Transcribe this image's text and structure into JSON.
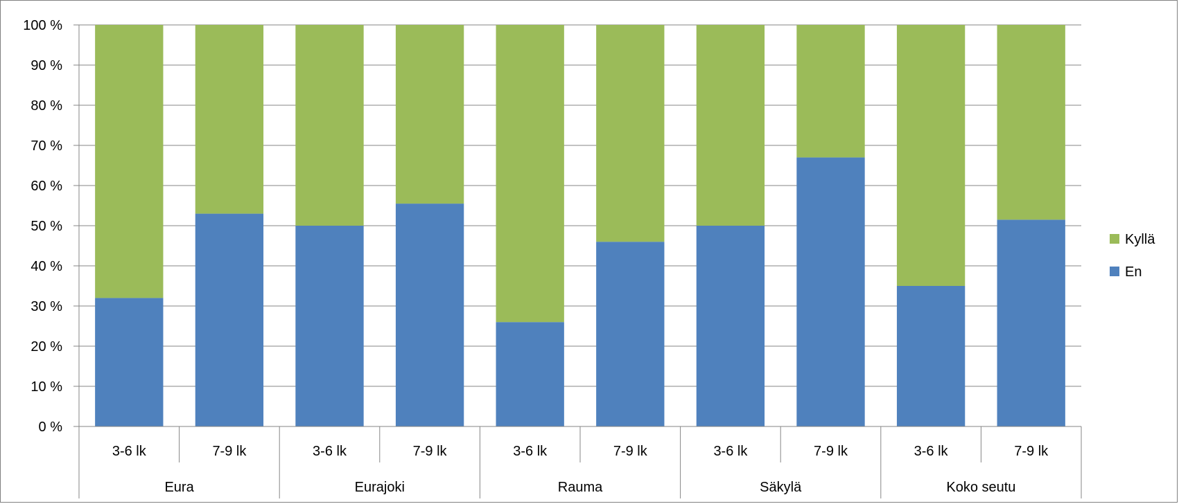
{
  "chart_data": {
    "type": "bar",
    "stacked": true,
    "ylim": [
      0,
      100
    ],
    "y_ticks": [
      "0 %",
      "10 %",
      "20 %",
      "30 %",
      "40 %",
      "50 %",
      "60 %",
      "70 %",
      "80 %",
      "90 %",
      "100 %"
    ],
    "grid": true,
    "groups": [
      {
        "label": "Eura",
        "categories": [
          "3-6 lk",
          "7-9 lk"
        ]
      },
      {
        "label": "Eurajoki",
        "categories": [
          "3-6 lk",
          "7-9 lk"
        ]
      },
      {
        "label": "Rauma",
        "categories": [
          "3-6 lk",
          "7-9 lk"
        ]
      },
      {
        "label": "Säkylä",
        "categories": [
          "3-6 lk",
          "7-9 lk"
        ]
      },
      {
        "label": "Koko seutu",
        "categories": [
          "3-6 lk",
          "7-9 lk"
        ]
      }
    ],
    "series": [
      {
        "name": "En",
        "color": "#4f81bd",
        "values": [
          32,
          53,
          50,
          55.5,
          26,
          46,
          50,
          67,
          35,
          51.5
        ]
      },
      {
        "name": "Kyllä",
        "color": "#9bbb59",
        "values": [
          68,
          47,
          50,
          44.5,
          74,
          54,
          50,
          33,
          65,
          48.5
        ]
      }
    ],
    "legend": {
      "position": "right",
      "order": [
        "Kyllä",
        "En"
      ]
    }
  }
}
